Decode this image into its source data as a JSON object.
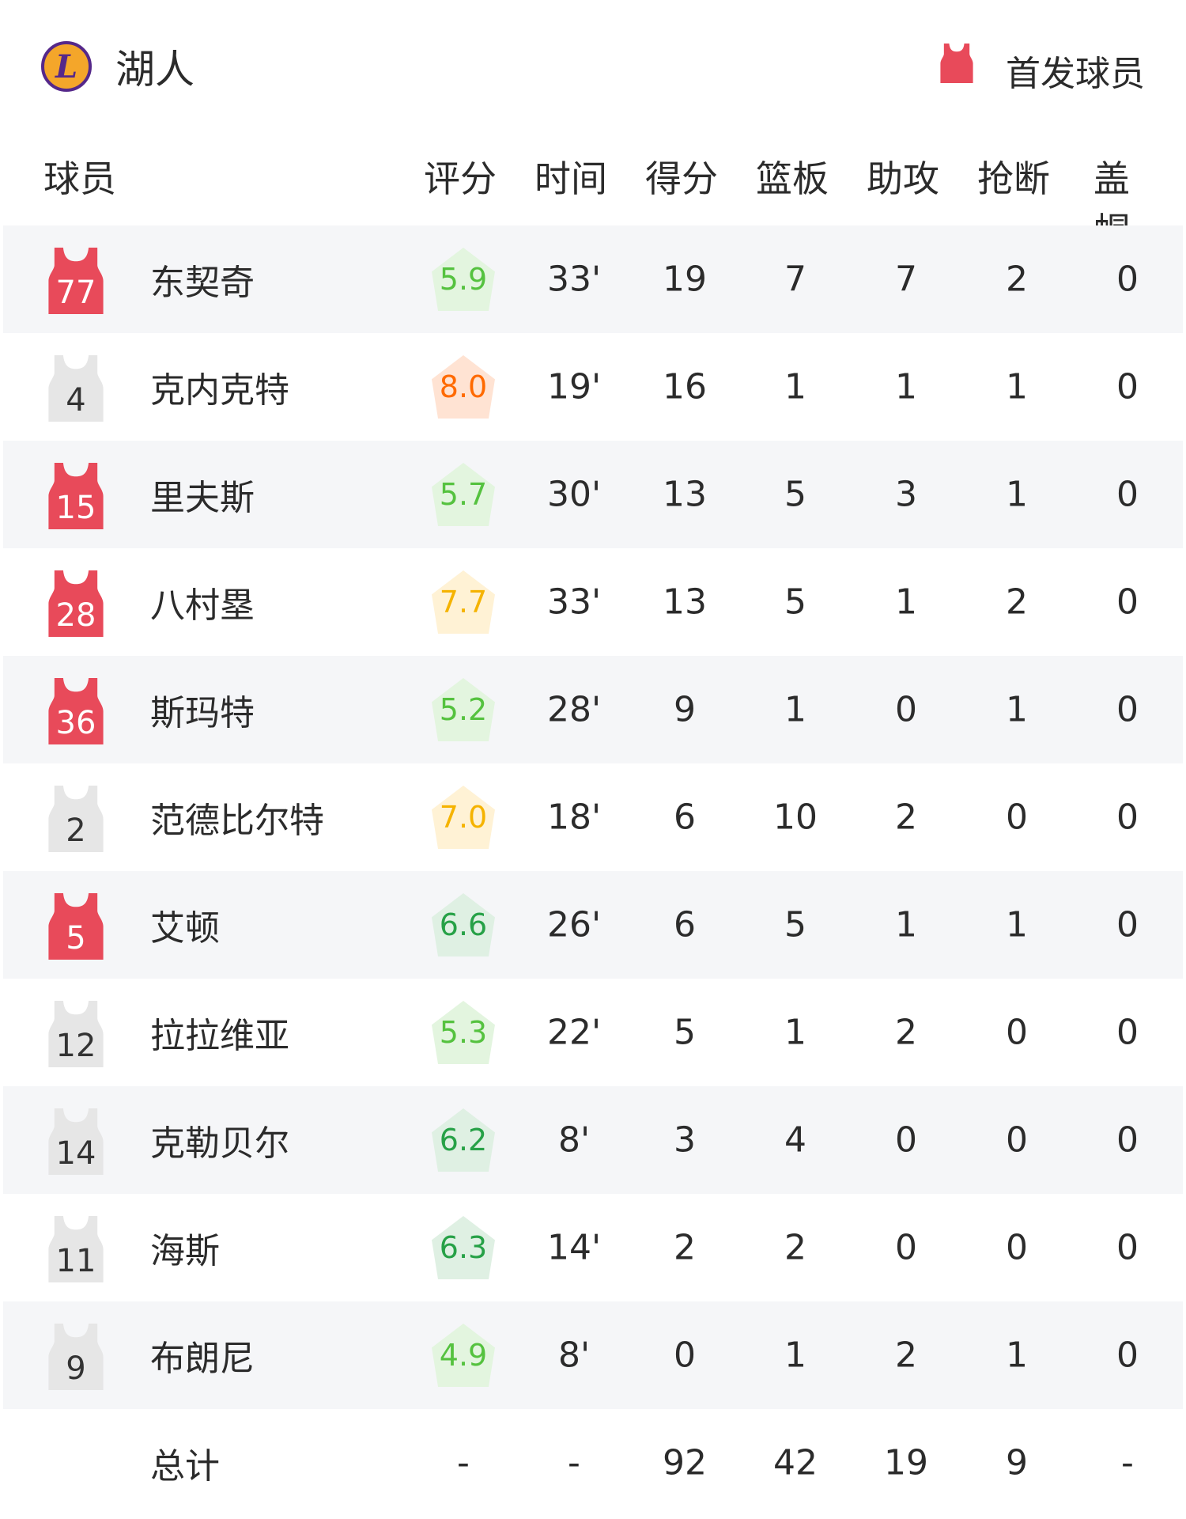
{
  "team": {
    "name": "湖人",
    "logo_text": "L"
  },
  "legend": {
    "label": "首发球员",
    "color": "#e84a5a"
  },
  "columns": [
    "球员",
    "评分",
    "时间",
    "得分",
    "篮板",
    "助攻",
    "抢断",
    "盖帽"
  ],
  "colors": {
    "starter": "#e84a5a",
    "bench": "#e6e6e6",
    "green": "#55c23f",
    "darkgreen": "#27a147",
    "orange": "#ff6a00",
    "yellow": "#f5b300"
  },
  "players": [
    {
      "number": "77",
      "name": "东契奇",
      "starter": true,
      "rating": "5.9",
      "tier": "green",
      "time": "33'",
      "pts": "19",
      "reb": "7",
      "ast": "7",
      "stl": "2",
      "blk": "0"
    },
    {
      "number": "4",
      "name": "克内克特",
      "starter": false,
      "rating": "8.0",
      "tier": "orange",
      "time": "19'",
      "pts": "16",
      "reb": "1",
      "ast": "1",
      "stl": "1",
      "blk": "0"
    },
    {
      "number": "15",
      "name": "里夫斯",
      "starter": true,
      "rating": "5.7",
      "tier": "green",
      "time": "30'",
      "pts": "13",
      "reb": "5",
      "ast": "3",
      "stl": "1",
      "blk": "0"
    },
    {
      "number": "28",
      "name": "八村塁",
      "starter": true,
      "rating": "7.7",
      "tier": "yellow",
      "time": "33'",
      "pts": "13",
      "reb": "5",
      "ast": "1",
      "stl": "2",
      "blk": "0"
    },
    {
      "number": "36",
      "name": "斯玛特",
      "starter": true,
      "rating": "5.2",
      "tier": "green",
      "time": "28'",
      "pts": "9",
      "reb": "1",
      "ast": "0",
      "stl": "1",
      "blk": "0"
    },
    {
      "number": "2",
      "name": "范德比尔特",
      "starter": false,
      "rating": "7.0",
      "tier": "yellow",
      "time": "18'",
      "pts": "6",
      "reb": "10",
      "ast": "2",
      "stl": "0",
      "blk": "0"
    },
    {
      "number": "5",
      "name": "艾顿",
      "starter": true,
      "rating": "6.6",
      "tier": "darkgreen",
      "time": "26'",
      "pts": "6",
      "reb": "5",
      "ast": "1",
      "stl": "1",
      "blk": "0"
    },
    {
      "number": "12",
      "name": "拉拉维亚",
      "starter": false,
      "rating": "5.3",
      "tier": "green",
      "time": "22'",
      "pts": "5",
      "reb": "1",
      "ast": "2",
      "stl": "0",
      "blk": "0"
    },
    {
      "number": "14",
      "name": "克勒贝尔",
      "starter": false,
      "rating": "6.2",
      "tier": "darkgreen",
      "time": "8'",
      "pts": "3",
      "reb": "4",
      "ast": "0",
      "stl": "0",
      "blk": "0"
    },
    {
      "number": "11",
      "name": "海斯",
      "starter": false,
      "rating": "6.3",
      "tier": "darkgreen",
      "time": "14'",
      "pts": "2",
      "reb": "2",
      "ast": "0",
      "stl": "0",
      "blk": "0"
    },
    {
      "number": "9",
      "name": "布朗尼",
      "starter": false,
      "rating": "4.9",
      "tier": "green",
      "time": "8'",
      "pts": "0",
      "reb": "1",
      "ast": "2",
      "stl": "1",
      "blk": "0"
    }
  ],
  "totals": {
    "label": "总计",
    "rating": "-",
    "time": "-",
    "pts": "92",
    "reb": "42",
    "ast": "19",
    "stl": "9",
    "blk": "-"
  }
}
